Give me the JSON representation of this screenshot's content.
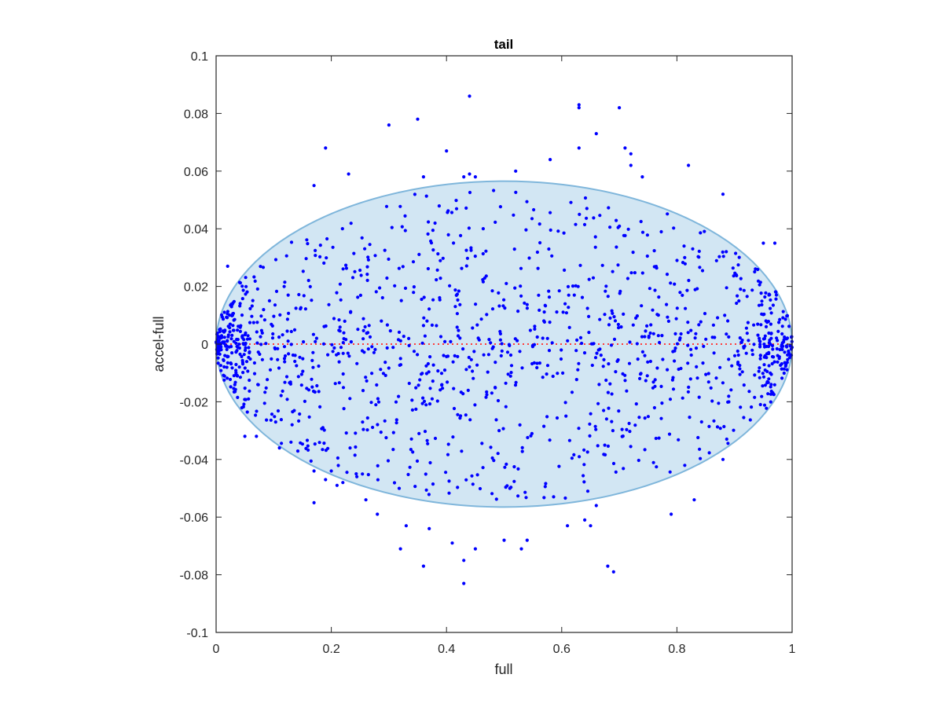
{
  "chart_data": {
    "type": "scatter",
    "title": "tail",
    "xlabel": "full",
    "ylabel": "accel-full",
    "xlim": [
      0,
      1
    ],
    "ylim": [
      -0.1,
      0.1
    ],
    "x_ticks": [
      0,
      0.2,
      0.4,
      0.6,
      0.8,
      1
    ],
    "x_tick_labels": [
      "0",
      "0.2",
      "0.4",
      "0.6",
      "0.8",
      "1"
    ],
    "y_ticks": [
      -0.1,
      -0.08,
      -0.06,
      -0.04,
      -0.02,
      0,
      0.02,
      0.04,
      0.06,
      0.08,
      0.1
    ],
    "y_tick_labels": [
      "-0.1",
      "-0.08",
      "-0.06",
      "-0.04",
      "-0.02",
      "0",
      "0.02",
      "0.04",
      "0.06",
      "0.08",
      "0.1"
    ],
    "grid": false,
    "colors": {
      "points": "#0000ff",
      "ellipse_fill": "#d2e6f3",
      "ellipse_stroke": "#7fb6db",
      "reference_line": "#ff3b3b",
      "axes": "#262626"
    },
    "ellipse": {
      "center": [
        0.5,
        0
      ],
      "semi_axes": [
        0.5,
        0.0565
      ]
    },
    "reference_line": {
      "y": 0,
      "style": "dotted"
    },
    "outlier_points": [
      [
        0.44,
        0.086
      ],
      [
        0.63,
        0.083
      ],
      [
        0.63,
        0.082
      ],
      [
        0.7,
        0.082
      ],
      [
        0.35,
        0.078
      ],
      [
        0.3,
        0.076
      ],
      [
        0.66,
        0.073
      ],
      [
        0.71,
        0.068
      ],
      [
        0.19,
        0.068
      ],
      [
        0.63,
        0.068
      ],
      [
        0.72,
        0.066
      ],
      [
        0.4,
        0.067
      ],
      [
        0.82,
        0.062
      ],
      [
        0.58,
        0.064
      ],
      [
        0.72,
        0.062
      ],
      [
        0.74,
        0.058
      ],
      [
        0.52,
        0.06
      ],
      [
        0.23,
        0.059
      ],
      [
        0.17,
        0.055
      ],
      [
        0.43,
        0.058
      ],
      [
        0.44,
        0.059
      ],
      [
        0.88,
        0.052
      ],
      [
        0.45,
        0.058
      ],
      [
        0.36,
        0.058
      ],
      [
        0.97,
        0.035
      ],
      [
        0.95,
        0.035
      ],
      [
        0.02,
        0.027
      ],
      [
        0.43,
        -0.083
      ],
      [
        0.36,
        -0.077
      ],
      [
        0.68,
        -0.077
      ],
      [
        0.69,
        -0.079
      ],
      [
        0.32,
        -0.071
      ],
      [
        0.43,
        -0.075
      ],
      [
        0.45,
        -0.071
      ],
      [
        0.41,
        -0.069
      ],
      [
        0.53,
        -0.071
      ],
      [
        0.5,
        -0.068
      ],
      [
        0.54,
        -0.068
      ],
      [
        0.37,
        -0.064
      ],
      [
        0.33,
        -0.063
      ],
      [
        0.65,
        -0.063
      ],
      [
        0.61,
        -0.063
      ],
      [
        0.64,
        -0.061
      ],
      [
        0.28,
        -0.059
      ],
      [
        0.79,
        -0.059
      ],
      [
        0.66,
        -0.056
      ],
      [
        0.17,
        -0.055
      ],
      [
        0.83,
        -0.054
      ],
      [
        0.26,
        -0.054
      ],
      [
        0.21,
        -0.049
      ],
      [
        0.19,
        -0.047
      ],
      [
        0.17,
        -0.044
      ],
      [
        0.2,
        -0.044
      ],
      [
        0.22,
        -0.048
      ],
      [
        0.88,
        -0.04
      ],
      [
        0.07,
        -0.032
      ],
      [
        0.05,
        -0.032
      ],
      [
        0.11,
        -0.036
      ],
      [
        0.13,
        -0.034
      ]
    ],
    "cloud_point_count": 1350,
    "cloud_seed": 1234
  }
}
